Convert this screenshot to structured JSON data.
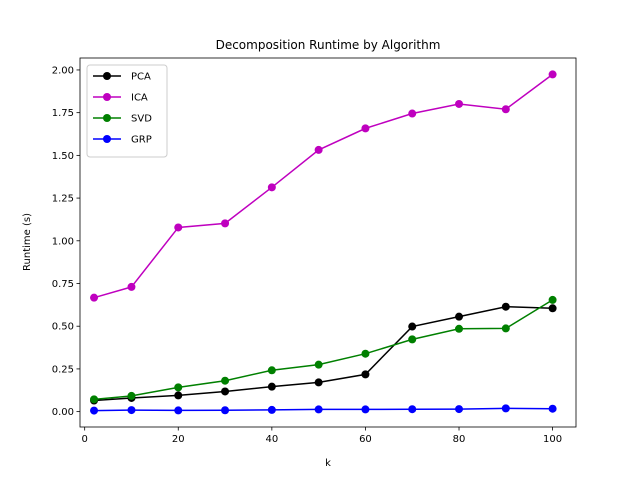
{
  "chart_data": {
    "type": "line",
    "title": "Decomposition Runtime by Algorithm",
    "xlabel": "k",
    "ylabel": "Runtime (s)",
    "xlim": [
      -1,
      105
    ],
    "ylim": [
      -0.09,
      2.07
    ],
    "xticks": [
      0,
      20,
      40,
      60,
      80,
      100
    ],
    "yticks": [
      0.0,
      0.25,
      0.5,
      0.75,
      1.0,
      1.25,
      1.5,
      1.75,
      2.0
    ],
    "xtick_labels": [
      "0",
      "20",
      "40",
      "60",
      "80",
      "100"
    ],
    "ytick_labels": [
      "0.00",
      "0.25",
      "0.50",
      "0.75",
      "1.00",
      "1.25",
      "1.50",
      "1.75",
      "2.00"
    ],
    "x": [
      2,
      10,
      20,
      30,
      40,
      50,
      60,
      70,
      80,
      90,
      100
    ],
    "grid": false,
    "legend_position": "top-left",
    "series": [
      {
        "name": "PCA",
        "color": "#000000",
        "values": [
          0.065,
          0.08,
          0.095,
          0.118,
          0.146,
          0.171,
          0.218,
          0.498,
          0.556,
          0.614,
          0.605
        ]
      },
      {
        "name": "ICA",
        "color": "#bf00bf",
        "values": [
          0.667,
          0.73,
          1.078,
          1.102,
          1.313,
          1.532,
          1.658,
          1.745,
          1.801,
          1.77,
          1.974
        ]
      },
      {
        "name": "SVD",
        "color": "#008000",
        "values": [
          0.072,
          0.092,
          0.142,
          0.181,
          0.242,
          0.275,
          0.339,
          0.423,
          0.485,
          0.487,
          0.654
        ]
      },
      {
        "name": "GRP",
        "color": "#0000ff",
        "values": [
          0.006,
          0.009,
          0.007,
          0.008,
          0.01,
          0.013,
          0.013,
          0.014,
          0.015,
          0.019,
          0.017
        ]
      }
    ]
  }
}
